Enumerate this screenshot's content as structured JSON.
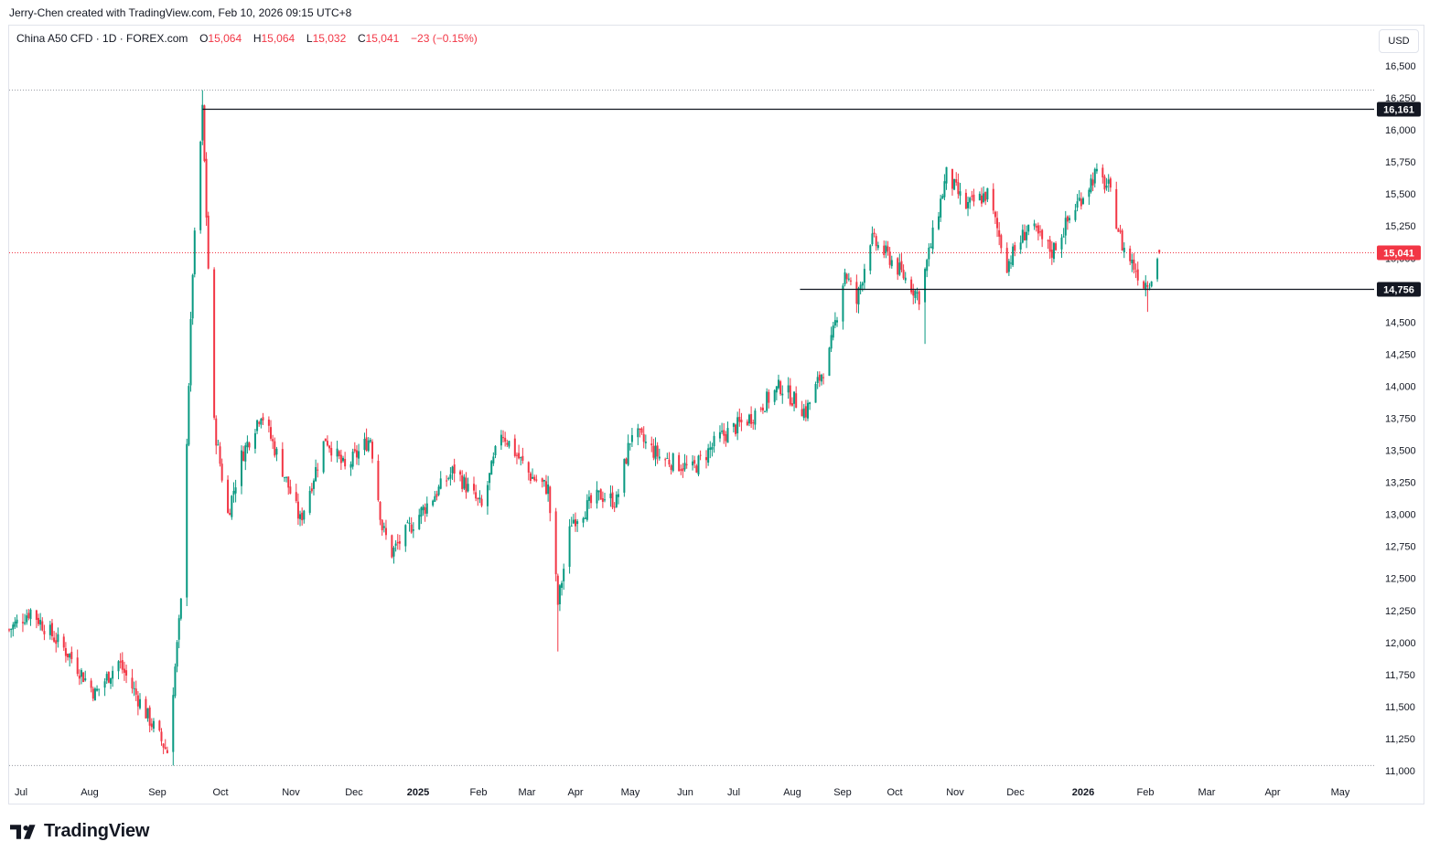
{
  "header": {
    "credit": "Jerry-Chen created with TradingView.com, Feb 10, 2026 09:15 UTC+8"
  },
  "legend": {
    "symbol": "China A50 CFD · 1D · FOREX.com",
    "o_label": "O",
    "o_value": "15,064",
    "h_label": "H",
    "h_value": "15,064",
    "l_label": "L",
    "l_value": "15,032",
    "c_label": "C",
    "c_value": "15,041",
    "change": "−23 (−0.15%)"
  },
  "currency_button": "USD",
  "brand": {
    "name": "TradingView"
  },
  "colors": {
    "up": "#089981",
    "down": "#f23645",
    "text": "#131722",
    "line": "#131722",
    "grid": "#9598a1"
  },
  "chart_data": {
    "type": "candlestick",
    "instrument": "China A50 CFD",
    "interval": "1D",
    "y_axis": {
      "ticks": [
        "16,500",
        "16,250",
        "16,000",
        "15,750",
        "15,500",
        "15,250",
        "15,000",
        "14,750",
        "14,500",
        "14,250",
        "14,000",
        "13,750",
        "13,500",
        "13,250",
        "13,000",
        "12,750",
        "12,500",
        "12,250",
        "12,000",
        "11,750",
        "11,500",
        "11,250",
        "11,000"
      ],
      "range": [
        11000,
        16500
      ]
    },
    "x_axis": {
      "ticks": [
        {
          "label": "Jul",
          "bold": false
        },
        {
          "label": "Aug",
          "bold": false
        },
        {
          "label": "Sep",
          "bold": false
        },
        {
          "label": "Oct",
          "bold": false
        },
        {
          "label": "Nov",
          "bold": false
        },
        {
          "label": "Dec",
          "bold": false
        },
        {
          "label": "2025",
          "bold": true
        },
        {
          "label": "Feb",
          "bold": false
        },
        {
          "label": "Mar",
          "bold": false
        },
        {
          "label": "Apr",
          "bold": false
        },
        {
          "label": "May",
          "bold": false
        },
        {
          "label": "Jun",
          "bold": false
        },
        {
          "label": "Jul",
          "bold": false
        },
        {
          "label": "Aug",
          "bold": false
        },
        {
          "label": "Sep",
          "bold": false
        },
        {
          "label": "Oct",
          "bold": false
        },
        {
          "label": "Nov",
          "bold": false
        },
        {
          "label": "Dec",
          "bold": false
        },
        {
          "label": "2026",
          "bold": true
        },
        {
          "label": "Feb",
          "bold": false
        },
        {
          "label": "Mar",
          "bold": false
        },
        {
          "label": "Apr",
          "bold": false
        },
        {
          "label": "May",
          "bold": false
        }
      ],
      "range": [
        "2024-07-01",
        "2026-05-31"
      ]
    },
    "horizontal_lines": [
      {
        "value": 16161,
        "label": "16,161",
        "from": "2024-10-08"
      },
      {
        "value": 14756,
        "label": "14,756",
        "from": "2025-08-10"
      }
    ],
    "last_price": {
      "value": 15041,
      "label": "15,041"
    },
    "range_markers": {
      "high": 16310,
      "low": 11040
    },
    "price_path": [
      {
        "date": "2024-07-01",
        "close": 12100
      },
      {
        "date": "2024-07-12",
        "close": 12250
      },
      {
        "date": "2024-08-01",
        "close": 11900
      },
      {
        "date": "2024-08-14",
        "close": 11600
      },
      {
        "date": "2024-08-26",
        "close": 11850
      },
      {
        "date": "2024-09-09",
        "close": 11450
      },
      {
        "date": "2024-09-20",
        "close": 11150
      },
      {
        "date": "2024-09-27",
        "close": 12300
      },
      {
        "date": "2024-10-03",
        "close": 14900
      },
      {
        "date": "2024-10-08",
        "close": 16150
      },
      {
        "date": "2024-10-14",
        "close": 13700
      },
      {
        "date": "2024-10-21",
        "close": 13000
      },
      {
        "date": "2024-10-28",
        "close": 13450
      },
      {
        "date": "2024-11-07",
        "close": 13800
      },
      {
        "date": "2024-11-18",
        "close": 13350
      },
      {
        "date": "2024-11-27",
        "close": 12950
      },
      {
        "date": "2024-12-10",
        "close": 13600
      },
      {
        "date": "2024-12-20",
        "close": 13350
      },
      {
        "date": "2025-01-02",
        "close": 13600
      },
      {
        "date": "2025-01-08",
        "close": 12900
      },
      {
        "date": "2025-01-13",
        "close": 12700
      },
      {
        "date": "2025-01-27",
        "close": 13000
      },
      {
        "date": "2025-02-14",
        "close": 13350
      },
      {
        "date": "2025-02-28",
        "close": 13050
      },
      {
        "date": "2025-03-10",
        "close": 13650
      },
      {
        "date": "2025-03-25",
        "close": 13300
      },
      {
        "date": "2025-04-03",
        "close": 13200
      },
      {
        "date": "2025-04-08",
        "close": 12300
      },
      {
        "date": "2025-04-15",
        "close": 12950
      },
      {
        "date": "2025-04-30",
        "close": 13150
      },
      {
        "date": "2025-05-08",
        "close": 13100
      },
      {
        "date": "2025-05-16",
        "close": 13650
      },
      {
        "date": "2025-05-30",
        "close": 13450
      },
      {
        "date": "2025-06-16",
        "close": 13350
      },
      {
        "date": "2025-06-30",
        "close": 13600
      },
      {
        "date": "2025-07-15",
        "close": 13750
      },
      {
        "date": "2025-07-31",
        "close": 14000
      },
      {
        "date": "2025-08-13",
        "close": 13800
      },
      {
        "date": "2025-08-25",
        "close": 14250
      },
      {
        "date": "2025-09-02",
        "close": 14900
      },
      {
        "date": "2025-09-08",
        "close": 14650
      },
      {
        "date": "2025-09-15",
        "close": 15150
      },
      {
        "date": "2025-09-25",
        "close": 15000
      },
      {
        "date": "2025-10-10",
        "close": 14700
      },
      {
        "date": "2025-10-16",
        "close": 15100
      },
      {
        "date": "2025-10-24",
        "close": 15650
      },
      {
        "date": "2025-11-03",
        "close": 15400
      },
      {
        "date": "2025-11-14",
        "close": 15500
      },
      {
        "date": "2025-11-24",
        "close": 14950
      },
      {
        "date": "2025-12-05",
        "close": 15250
      },
      {
        "date": "2025-12-17",
        "close": 15050
      },
      {
        "date": "2025-12-29",
        "close": 15400
      },
      {
        "date": "2026-01-08",
        "close": 15650
      },
      {
        "date": "2026-01-15",
        "close": 15550
      },
      {
        "date": "2026-01-22",
        "close": 15100
      },
      {
        "date": "2026-02-02",
        "close": 14800
      },
      {
        "date": "2026-02-06",
        "close": 14850
      },
      {
        "date": "2026-02-10",
        "close": 15041
      }
    ]
  }
}
